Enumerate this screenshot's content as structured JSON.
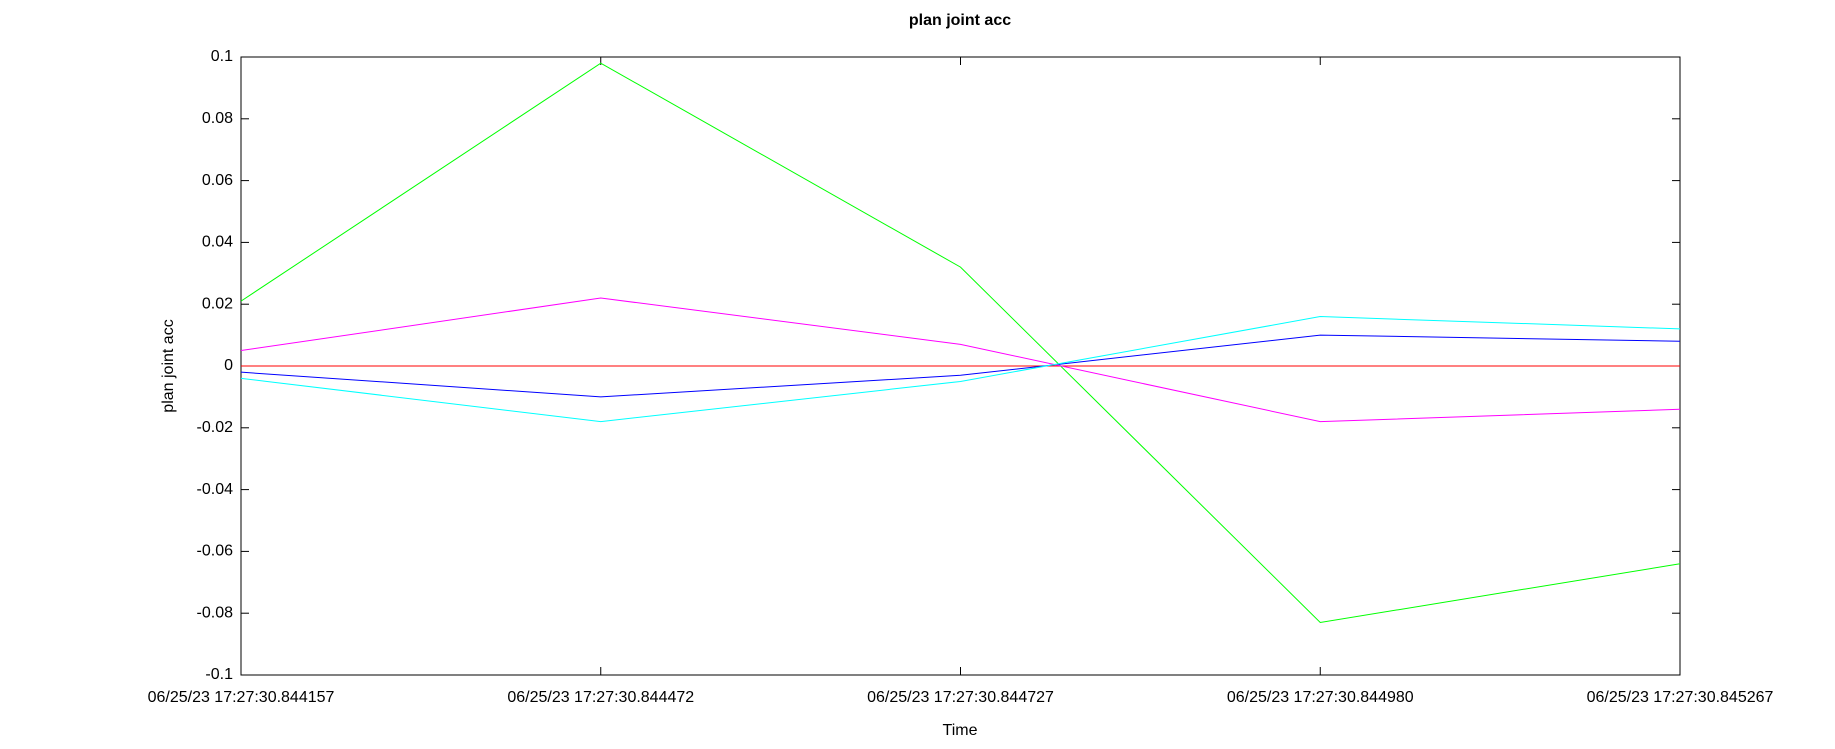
{
  "chart_data": {
    "type": "line",
    "title": "plan joint acc",
    "x_label": "Time",
    "y_label": "plan joint acc",
    "categories": [
      "06/25/23 17:27:30.844157",
      "06/25/23 17:27:30.844472",
      "06/25/23 17:27:30.844727",
      "06/25/23 17:27:30.844980",
      "06/25/23 17:27:30.845267"
    ],
    "series": [
      {
        "color": "#ff0000",
        "values": [
          0,
          0,
          0,
          0,
          0
        ]
      },
      {
        "color": "#00ff00",
        "values": [
          0.021,
          0.098,
          0.032,
          -0.083,
          -0.064
        ]
      },
      {
        "color": "#0000ff",
        "values": [
          -0.002,
          -0.01,
          -0.003,
          0.01,
          0.008
        ]
      },
      {
        "color": "#ff00ff",
        "values": [
          0.005,
          0.022,
          0.007,
          -0.018,
          -0.014
        ]
      },
      {
        "color": "#00ffff",
        "values": [
          -0.004,
          -0.018,
          -0.005,
          0.016,
          0.012
        ]
      }
    ],
    "ylim": [
      -0.1,
      0.1
    ],
    "yticks": [
      0.1,
      0.08,
      0.06,
      0.04,
      0.02,
      0,
      -0.02,
      -0.04,
      -0.06,
      -0.08,
      -0.1
    ],
    "grid": false
  }
}
